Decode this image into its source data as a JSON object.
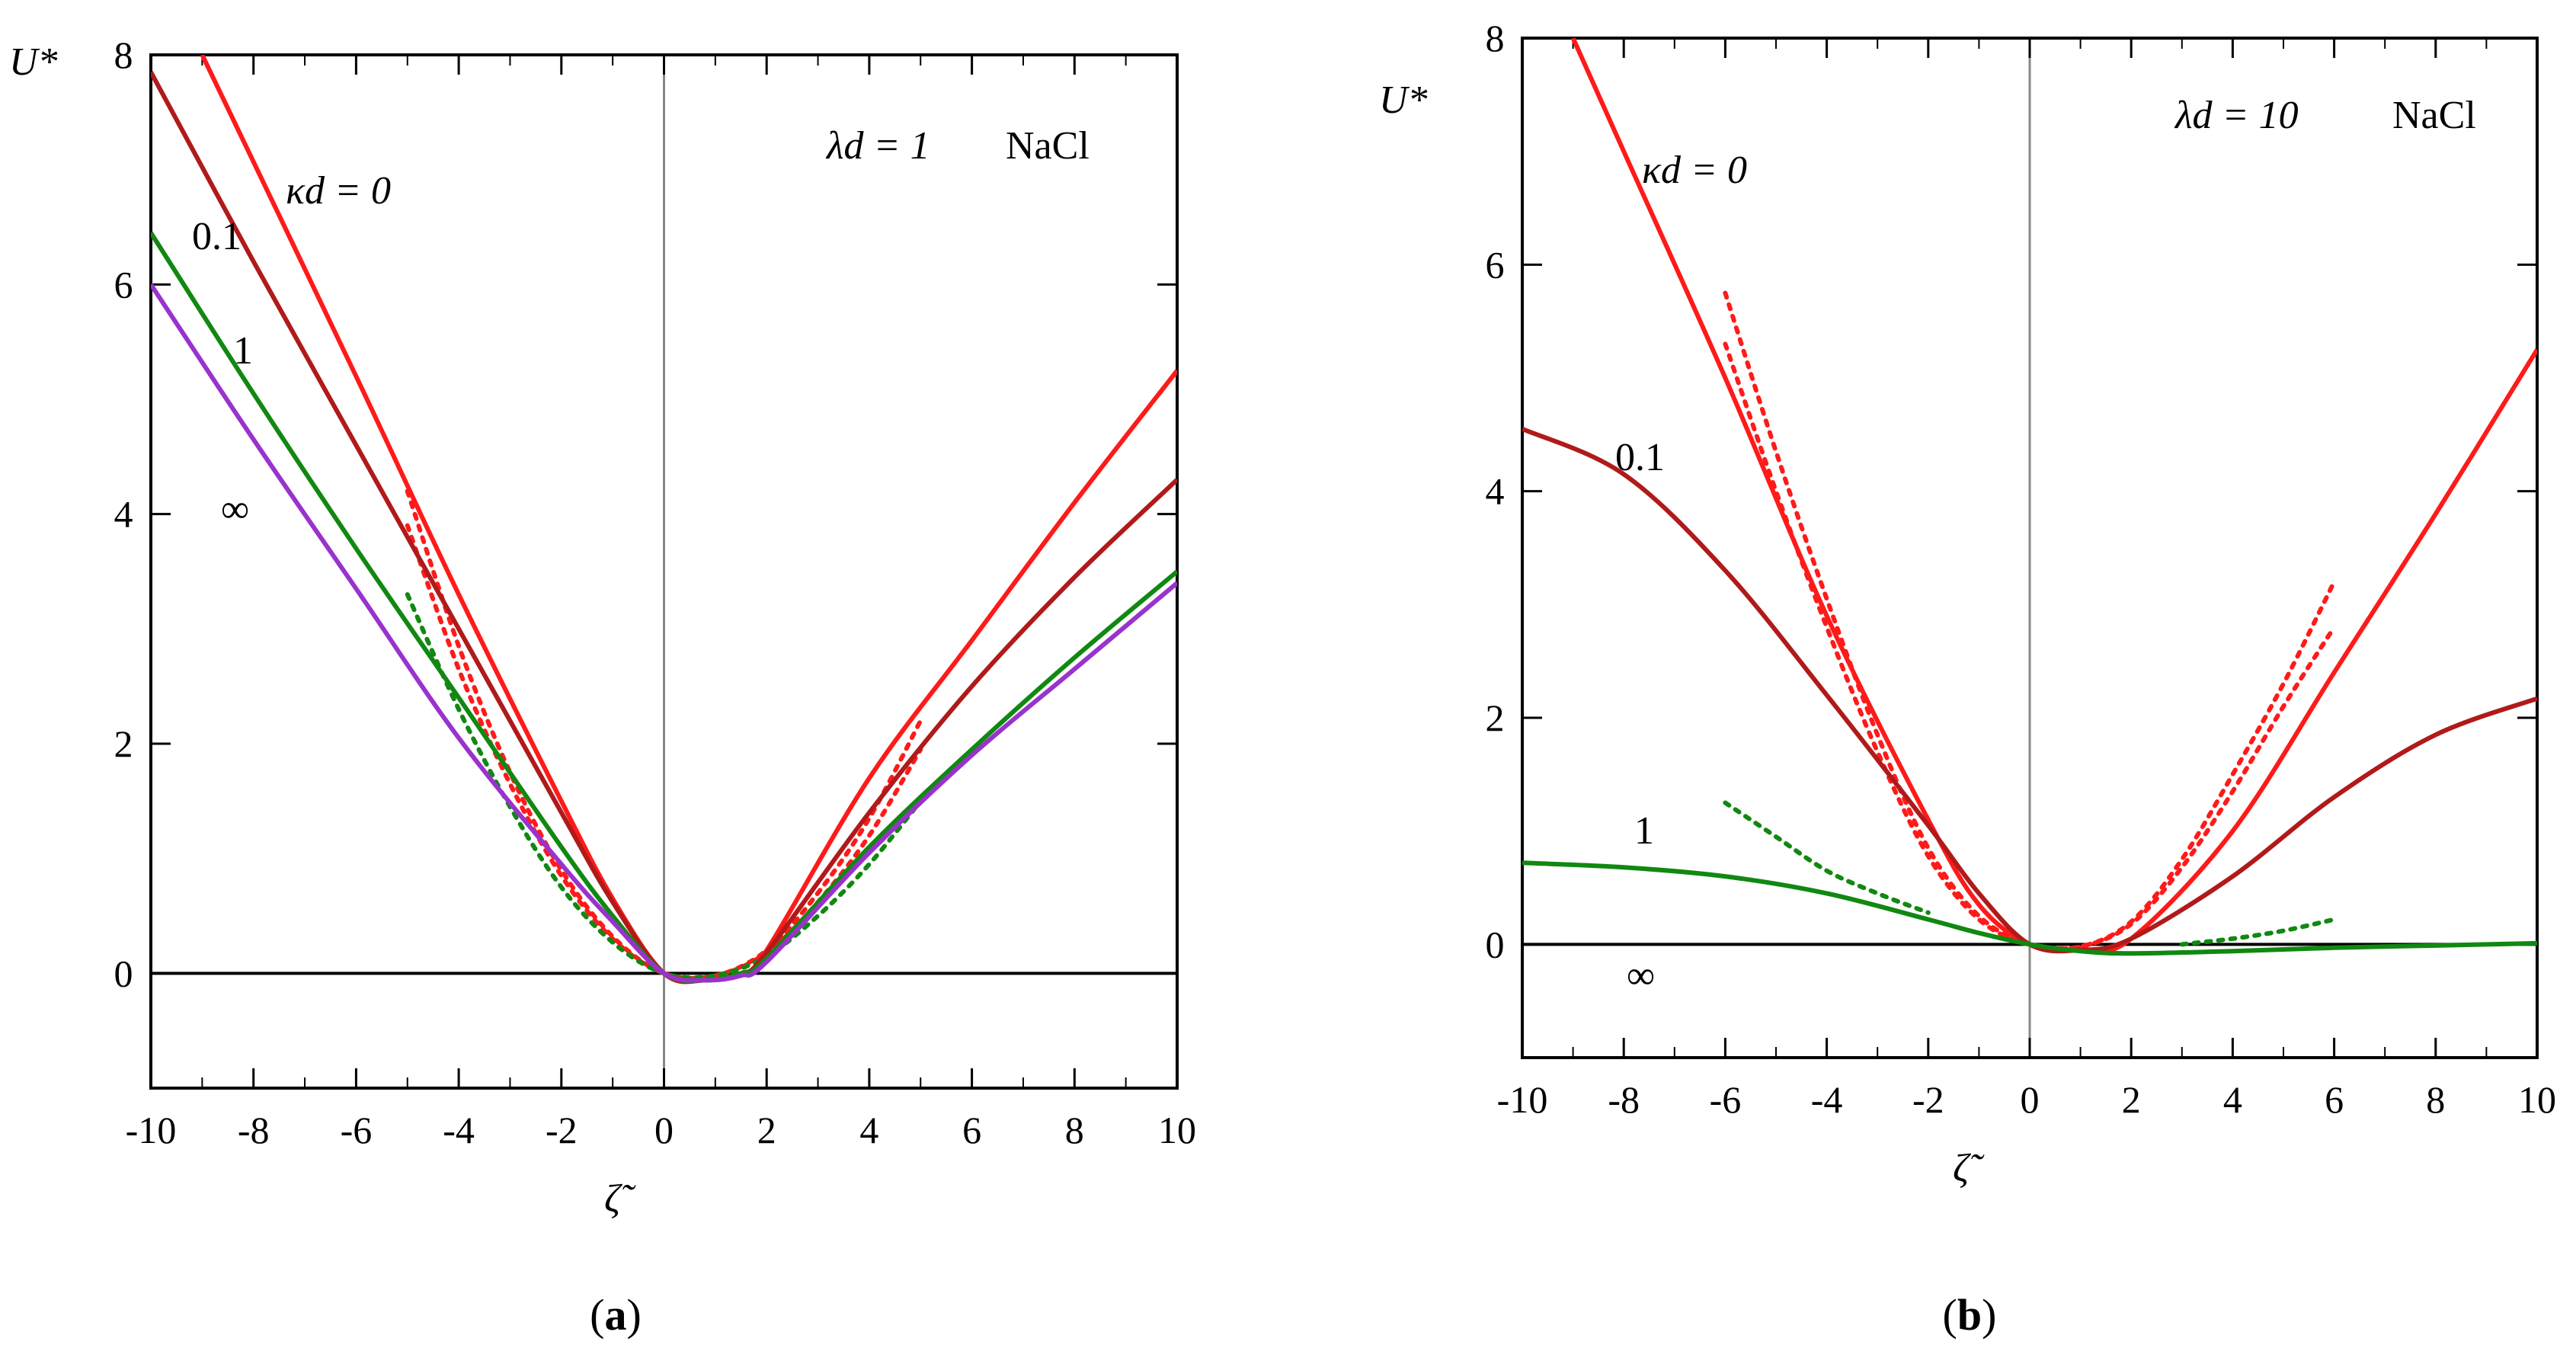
{
  "chart_data": [
    {
      "id": "a",
      "type": "line",
      "caption_open": "(",
      "caption_letter": "a",
      "caption_close": ")",
      "ylabel": "U*",
      "xlabel": "ζ̃",
      "annotation": "λd = 1",
      "ion": "NaCl",
      "xlim": [
        -10,
        10
      ],
      "ylim": [
        -1,
        8
      ],
      "x_ticks": [
        "-10",
        "-8",
        "-6",
        "-4",
        "-2",
        "0",
        "2",
        "4",
        "6",
        "8",
        "10"
      ],
      "y_ticks": [
        "0",
        "2",
        "4",
        "6",
        "8"
      ],
      "series": [
        {
          "name": "κd = 0",
          "label": "κd = 0",
          "color": "#ff1a1a",
          "x": [
            -9,
            -6,
            -4,
            -2,
            -1,
            0,
            0.8,
            1.5,
            2,
            4,
            6,
            8,
            10
          ],
          "y": [
            8.0,
            5.2,
            3.3,
            1.5,
            0.65,
            0.0,
            -0.06,
            0.0,
            0.2,
            1.7,
            2.9,
            4.1,
            5.25
          ]
        },
        {
          "name": "κd = 0.1",
          "label": "0.1",
          "color": "#b01a1a",
          "x": [
            -10,
            -8,
            -6,
            -4,
            -2,
            -1,
            0,
            0.8,
            1.5,
            2,
            4,
            6,
            8,
            10
          ],
          "y": [
            7.85,
            6.2,
            4.6,
            3.0,
            1.4,
            0.62,
            0.0,
            -0.06,
            0.0,
            0.18,
            1.4,
            2.5,
            3.45,
            4.3
          ]
        },
        {
          "name": "κd = 1",
          "label": "1",
          "color": "#118811",
          "x": [
            -10,
            -8,
            -6,
            -4,
            -2,
            -1,
            0,
            0.8,
            1.5,
            2,
            4,
            6,
            8,
            10
          ],
          "y": [
            6.45,
            5.05,
            3.7,
            2.4,
            1.1,
            0.5,
            0.0,
            -0.06,
            0.0,
            0.13,
            1.1,
            1.95,
            2.75,
            3.5
          ]
        },
        {
          "name": "κd = ∞",
          "label": "∞",
          "color": "#9933cc",
          "x": [
            -10,
            -8,
            -6,
            -4,
            -2,
            -1,
            0,
            0.8,
            1.5,
            2,
            4,
            6,
            8,
            10
          ],
          "y": [
            6.0,
            4.65,
            3.35,
            2.05,
            0.95,
            0.45,
            0.0,
            -0.06,
            -0.02,
            0.1,
            1.05,
            1.9,
            2.65,
            3.4
          ]
        }
      ],
      "approximations": [
        {
          "color": "#ff1a1a",
          "x": [
            -5,
            -4,
            -3,
            -2,
            -1,
            0,
            1,
            2,
            3,
            4,
            5
          ],
          "y": [
            4.2,
            2.85,
            1.75,
            0.9,
            0.32,
            0.0,
            -0.02,
            0.2,
            0.7,
            1.35,
            2.2
          ]
        },
        {
          "color": "#ff1a1a",
          "x": [
            -5,
            -4,
            -3,
            -2,
            -1,
            0,
            1,
            2,
            3,
            4,
            5
          ],
          "y": [
            3.9,
            2.65,
            1.65,
            0.85,
            0.3,
            0.0,
            -0.02,
            0.18,
            0.62,
            1.2,
            1.95
          ]
        },
        {
          "color": "#118811",
          "x": [
            -5,
            -4,
            -3,
            -2,
            -1,
            0,
            1,
            2,
            3,
            4,
            5
          ],
          "y": [
            3.3,
            2.3,
            1.45,
            0.75,
            0.27,
            0.0,
            -0.02,
            0.15,
            0.5,
            0.95,
            1.5
          ]
        }
      ]
    },
    {
      "id": "b",
      "type": "line",
      "caption_open": "(",
      "caption_letter": "b",
      "caption_close": ")",
      "ylabel": "U*",
      "xlabel": "ζ̃",
      "annotation": "λd = 10",
      "ion": "NaCl",
      "xlim": [
        -10,
        10
      ],
      "ylim": [
        -1,
        8
      ],
      "x_ticks": [
        "-10",
        "-8",
        "-6",
        "-4",
        "-2",
        "0",
        "2",
        "4",
        "6",
        "8",
        "10"
      ],
      "y_ticks": [
        "0",
        "2",
        "4",
        "6",
        "8"
      ],
      "series": [
        {
          "name": "κd = 0",
          "label": "κd = 0",
          "color": "#ff1a1a",
          "x": [
            -9,
            -8,
            -6,
            -4,
            -2,
            -1,
            0,
            1,
            2,
            4,
            6,
            8,
            10
          ],
          "y": [
            8.0,
            7.0,
            5.0,
            2.9,
            1.1,
            0.35,
            0.0,
            -0.05,
            0.05,
            1.0,
            2.4,
            3.8,
            5.25
          ]
        },
        {
          "name": "κd = 0.1",
          "label": "0.1",
          "color": "#b01a1a",
          "x": [
            -10,
            -8,
            -6,
            -4,
            -2,
            -1,
            0,
            1,
            2,
            4,
            6,
            8,
            10
          ],
          "y": [
            4.55,
            4.15,
            3.3,
            2.2,
            1.05,
            0.45,
            0.0,
            -0.05,
            0.05,
            0.6,
            1.3,
            1.85,
            2.17
          ]
        },
        {
          "name": "κd = 1",
          "label": "1",
          "color": "#118811",
          "x": [
            -10,
            -8,
            -6,
            -4,
            -2,
            -1,
            0,
            1,
            2,
            4,
            6,
            8,
            10
          ],
          "y": [
            0.72,
            0.68,
            0.6,
            0.45,
            0.22,
            0.1,
            0.0,
            -0.06,
            -0.08,
            -0.06,
            -0.03,
            -0.01,
            0.01
          ]
        },
        {
          "name": "κd = ∞",
          "label": "∞",
          "color": "#000000",
          "x": [
            -10,
            10
          ],
          "y": [
            0,
            0
          ]
        }
      ],
      "approximations": [
        {
          "color": "#ff1a1a",
          "x": [
            -6,
            -5,
            -4,
            -3,
            -2,
            -1,
            0,
            1,
            2,
            3,
            4,
            5,
            6
          ],
          "y": [
            5.75,
            4.35,
            3.05,
            1.85,
            0.85,
            0.25,
            0.0,
            -0.02,
            0.2,
            0.75,
            1.5,
            2.3,
            3.2
          ]
        },
        {
          "color": "#ff1a1a",
          "x": [
            -6,
            -5,
            -4,
            -3,
            -2,
            -1,
            0,
            1,
            2,
            3,
            4,
            5,
            6
          ],
          "y": [
            5.3,
            4.0,
            2.8,
            1.7,
            0.78,
            0.22,
            0.0,
            -0.02,
            0.18,
            0.68,
            1.35,
            2.1,
            2.8
          ]
        },
        {
          "color": "#118811",
          "x": [
            -6,
            -5,
            -4,
            -3,
            -2
          ],
          "y": [
            1.25,
            0.95,
            0.65,
            0.45,
            0.28
          ]
        },
        {
          "color": "#118811",
          "x": [
            3,
            4,
            5,
            6
          ],
          "y": [
            0.0,
            0.05,
            0.12,
            0.22
          ]
        }
      ]
    }
  ]
}
